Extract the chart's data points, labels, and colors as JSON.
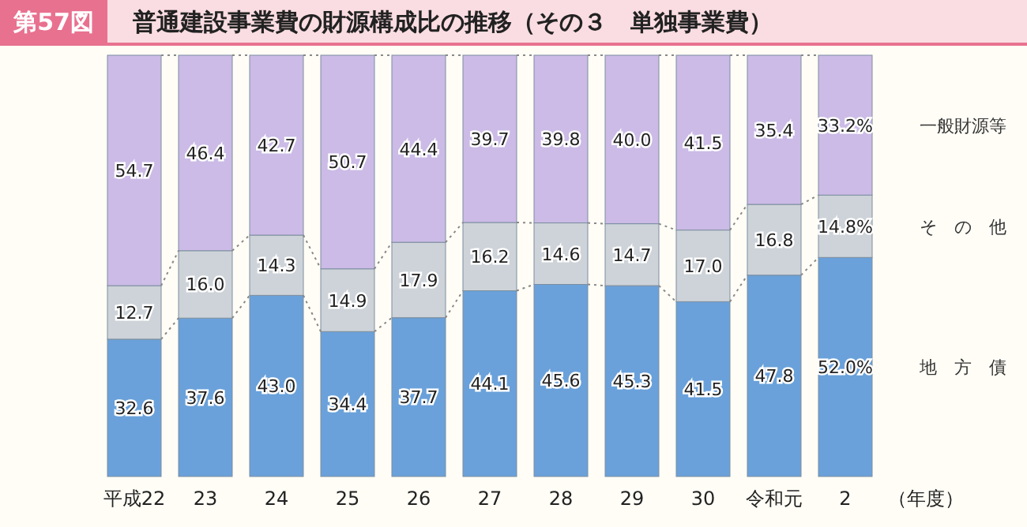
{
  "chart_data": {
    "type": "bar",
    "stacked": true,
    "title": "普通建設事業費の財源構成比の推移（その３　単独事業費）",
    "annotations": [
      "第57図"
    ],
    "xlabel": "（年度）",
    "categories": [
      "平成22",
      "23",
      "24",
      "25",
      "26",
      "27",
      "28",
      "29",
      "30",
      "令和元",
      "2"
    ],
    "ylim": [
      0,
      100
    ],
    "tick_labels": "x",
    "series": [
      {
        "name": "地　方　債",
        "color": "#6aa1da",
        "values": [
          32.6,
          37.6,
          43.0,
          34.4,
          37.7,
          44.1,
          45.6,
          45.3,
          41.5,
          47.8,
          52.0
        ],
        "value_labels": [
          "32.6",
          "37.6",
          "43.0",
          "34.4",
          "37.7",
          "44.1",
          "45.6",
          "45.3",
          "41.5",
          "47.8",
          "52.0%"
        ]
      },
      {
        "name": "そ　の　他",
        "color": "#cdd3d8",
        "values": [
          12.7,
          16.0,
          14.3,
          14.9,
          17.9,
          16.2,
          14.6,
          14.7,
          17.0,
          16.8,
          14.8
        ],
        "value_labels": [
          "12.7",
          "16.0",
          "14.3",
          "14.9",
          "17.9",
          "16.2",
          "14.6",
          "14.7",
          "17.0",
          "16.8",
          "14.8%"
        ]
      },
      {
        "name": "一般財源等",
        "color": "#cbbbe6",
        "values": [
          54.7,
          46.4,
          42.7,
          50.7,
          44.4,
          39.7,
          39.8,
          40.0,
          41.5,
          35.4,
          33.2
        ],
        "value_labels": [
          "54.7",
          "46.4",
          "42.7",
          "50.7",
          "44.4",
          "39.7",
          "39.8",
          "40.0",
          "41.5",
          "35.4",
          "33.2%"
        ]
      }
    ]
  }
}
